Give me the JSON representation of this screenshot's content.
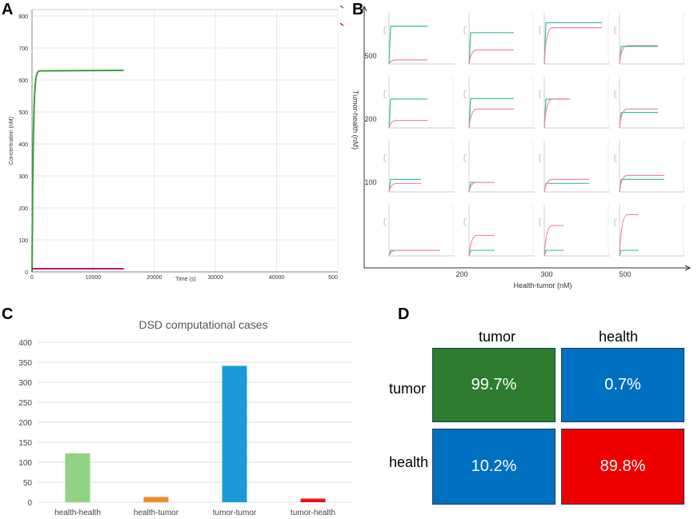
{
  "panels": {
    "a": "A",
    "b": "B",
    "c": "C",
    "d": "D"
  },
  "panelA": {
    "ylabel": "Concentration (nM)",
    "xlabel": "Time (s)",
    "yticks": [
      "0",
      "100",
      "200",
      "300",
      "400",
      "500",
      "600",
      "700",
      "800"
    ],
    "xticks": [
      "0",
      "10000",
      "20000",
      "30000",
      "40000",
      "500"
    ],
    "colors": {
      "green": "#3a9e3a",
      "magenta": "#c0186a",
      "red": "#cc2222"
    }
  },
  "panelB": {
    "ylabel": "Tumor-health (nM)",
    "xlabel": "Health-tumor (nM)",
    "yticks": [
      "500",
      "200",
      "100"
    ],
    "xticks": [
      "200",
      "300",
      "500"
    ]
  },
  "chart_data": [
    {
      "type": "line",
      "title": "",
      "xlabel": "Time (s)",
      "ylabel": "Concentration (nM)",
      "xlim": [
        0,
        50000
      ],
      "ylim": [
        0,
        820
      ],
      "series": [
        {
          "name": "green",
          "x": [
            0,
            1000,
            15000
          ],
          "values": [
            0,
            630,
            630
          ]
        },
        {
          "name": "magenta",
          "x": [
            0,
            15000
          ],
          "values": [
            10,
            10
          ]
        }
      ]
    },
    {
      "type": "bar",
      "title": "DSD computational cases",
      "categories": [
        "health-health",
        "health-tumor",
        "tumor-tumor",
        "tumor-health"
      ],
      "values": [
        122,
        13,
        341,
        9
      ],
      "colors": [
        "#92d284",
        "#f08a2c",
        "#1a9ad8",
        "#ee1111"
      ],
      "ylim": [
        0,
        400
      ],
      "yticks": [
        "0",
        "50",
        "100",
        "150",
        "200",
        "250",
        "300",
        "350",
        "400"
      ],
      "xlabel": "",
      "ylabel": ""
    },
    {
      "type": "heatmap",
      "columns": [
        "tumor",
        "health"
      ],
      "rows": [
        "tumor",
        "health"
      ],
      "cells": [
        [
          "99.7%",
          "0.7%"
        ],
        [
          "10.2%",
          "89.8%"
        ]
      ],
      "colors": [
        [
          "#2e7d2e",
          "#0070c0"
        ],
        [
          "#0070c0",
          "#ee0000"
        ]
      ]
    }
  ]
}
